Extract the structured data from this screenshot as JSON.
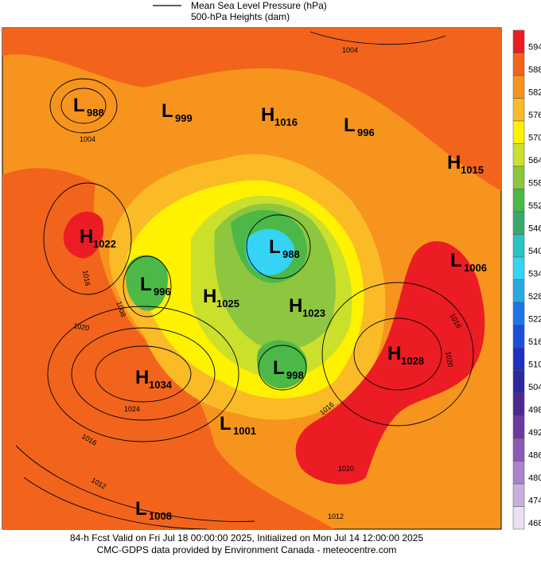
{
  "legend": {
    "items": [
      "Mean Sea Level Pressure (hPa)",
      "500-hPa Heights (dam)"
    ]
  },
  "colorbar": {
    "levels": [
      {
        "label": "594",
        "color": "#ec1c24"
      },
      {
        "label": "588",
        "color": "#f2641c"
      },
      {
        "label": "582",
        "color": "#f7941d"
      },
      {
        "label": "576",
        "color": "#fbbb27"
      },
      {
        "label": "570",
        "color": "#fff200"
      },
      {
        "label": "564",
        "color": "#cbe02a"
      },
      {
        "label": "558",
        "color": "#8dc63f"
      },
      {
        "label": "552",
        "color": "#4cb848"
      },
      {
        "label": "546",
        "color": "#3aa86c"
      },
      {
        "label": "540",
        "color": "#27c4c4"
      },
      {
        "label": "534",
        "color": "#35d3f5"
      },
      {
        "label": "528",
        "color": "#27aae1"
      },
      {
        "label": "522",
        "color": "#1c75e8"
      },
      {
        "label": "516",
        "color": "#1b4fd8"
      },
      {
        "label": "510",
        "color": "#1d30c0"
      },
      {
        "label": "504",
        "color": "#2e2a9e"
      },
      {
        "label": "498",
        "color": "#4b2a90"
      },
      {
        "label": "492",
        "color": "#6a3a9e"
      },
      {
        "label": "486",
        "color": "#8a5ab4"
      },
      {
        "label": "480",
        "color": "#a884c8"
      },
      {
        "label": "474",
        "color": "#c8b0dc"
      },
      {
        "label": "468",
        "color": "#ebe0f2"
      }
    ]
  },
  "centers": [
    {
      "type": "L",
      "value": "988"
    },
    {
      "type": "L",
      "value": "999"
    },
    {
      "type": "H",
      "value": "1016"
    },
    {
      "type": "L",
      "value": "996"
    },
    {
      "type": "H",
      "value": "1015"
    },
    {
      "type": "H",
      "value": "1022"
    },
    {
      "type": "L",
      "value": "988"
    },
    {
      "type": "L",
      "value": "1006"
    },
    {
      "type": "L",
      "value": "996"
    },
    {
      "type": "H",
      "value": "1025"
    },
    {
      "type": "H",
      "value": "1023"
    },
    {
      "type": "H",
      "value": "1028"
    },
    {
      "type": "L",
      "value": "998"
    },
    {
      "type": "H",
      "value": "1034"
    },
    {
      "type": "L",
      "value": "1001"
    },
    {
      "type": "L",
      "value": "1008"
    }
  ],
  "contour_labels": [
    "1004",
    "1004",
    "1016",
    "1008",
    "1020",
    "1024",
    "1016",
    "1012",
    "1016",
    "1020",
    "1016",
    "1020",
    "1012"
  ],
  "footer": {
    "line1": "84-h Fcst Valid on Fri Jul 18 00:00:00 2025, Initialized on Mon Jul 14 12:00:00 2025",
    "line2": "CMC-GDPS data provided by Environment Canada - meteocentre.com"
  }
}
